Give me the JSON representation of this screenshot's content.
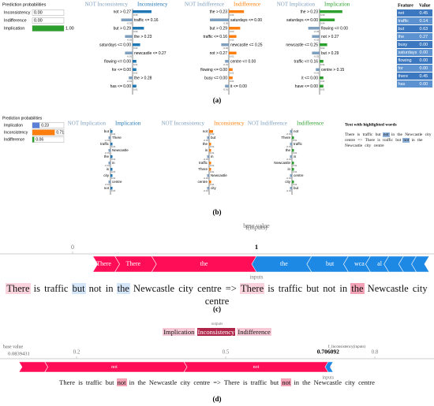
{
  "panel_a": {
    "caption": "(a)",
    "probabilities": {
      "title": "Prediction probabilities",
      "classes": [
        {
          "name": "Inconsistency",
          "value": 0,
          "label": "0.00",
          "color": "#1f77b4"
        },
        {
          "name": "Indifference",
          "value": 0,
          "label": "0.00",
          "color": "#ff7f0e"
        },
        {
          "name": "Implication",
          "value": 1,
          "label": "1.00",
          "color": "#2ca02c"
        }
      ]
    },
    "explanations": [
      {
        "not_label": "NOT Inconsistency",
        "label": "Inconsistency",
        "color": "#1f77b4",
        "not_color": "#7f9fbf",
        "features": [
          "not > 0.27",
          "traffic <= 0.16",
          "but > 0.29",
          "the > 0.23",
          "saturdays <= 0.00",
          "newcastle <= 0.27",
          "flowing <= 0.00",
          "for <= 0.00",
          "the > 0.28",
          "has <= 0.00"
        ],
        "weights": [
          0.05,
          -0.03,
          0.03,
          -0.02,
          0.02,
          -0.02,
          0.01,
          0.01,
          -0.01,
          0.01
        ]
      },
      {
        "not_label": "NOT Indifference",
        "label": "Indifference",
        "color": "#ff7f0e",
        "not_color": "#7f9fbf",
        "features": [
          "the > 0.23",
          "saturdays <= 0.00",
          "but > 0.29",
          "traffic <= 0.16",
          "newcastle <= 0.25",
          "not > 0.27",
          "centre <= 0.00",
          "flowing <= 0.00",
          "busy <= 0.00",
          "it <= 0.00"
        ],
        "weights": [
          0.04,
          -0.05,
          0.03,
          0.02,
          -0.02,
          0.02,
          -0.01,
          0.01,
          0.01,
          -0.01
        ]
      },
      {
        "not_label": "NOT Implication",
        "label": "Implication",
        "color": "#2ca02c",
        "not_color": "#7f9fbf",
        "features": [
          "the > 0.23",
          "saturdays <= 0.00",
          "flowing <= 0.00",
          "not > 0.27",
          "newcastle <= 0.25",
          "but > 0.29",
          "traffic <= 0.16",
          "centre > 0.15",
          "it <= 0.00",
          "have <= 0.00"
        ],
        "weights": [
          0.06,
          0.04,
          -0.03,
          -0.02,
          0.02,
          -0.02,
          0.01,
          -0.01,
          0.01,
          0.01
        ]
      }
    ],
    "feature_table": {
      "headers": [
        "Feature",
        "Value"
      ],
      "rows": [
        [
          "not",
          "0.45"
        ],
        [
          "traffic",
          "0.14"
        ],
        [
          "but",
          "0.63"
        ],
        [
          "the",
          "0.27"
        ],
        [
          "busy",
          "0.00"
        ],
        [
          "saturdays",
          "0.00"
        ],
        [
          "flowing",
          "0.00"
        ],
        [
          "for",
          "0.00"
        ],
        [
          "there",
          "0.45"
        ],
        [
          "has",
          "0.00"
        ]
      ]
    }
  },
  "panel_b": {
    "caption": "(b)",
    "probabilities": {
      "title": "Prediction probabilities",
      "classes": [
        {
          "name": "Implication",
          "value": 0.23,
          "label": "0.23",
          "color": "#5b7fd6"
        },
        {
          "name": "Inconsistency",
          "value": 0.71,
          "label": "0.71",
          "color": "#ff7f0e"
        },
        {
          "name": "Indifference",
          "value": 0.06,
          "label": "0.06",
          "color": "#2ca02c"
        }
      ]
    },
    "explanations": [
      {
        "not_label": "NOT Implication",
        "label": "Implication",
        "color": "#1f77b4",
        "not_color": "#7f9fbf",
        "features": [
          "but",
          "There",
          "traffic",
          "Newcastle",
          "the",
          "in",
          "is",
          "city",
          "centre",
          "not"
        ],
        "weights": [
          0.01,
          -0.01,
          0.01,
          -0.01,
          0.01,
          -0.01,
          0.01,
          0.01,
          -0.01,
          0.01
        ]
      },
      {
        "not_label": "NOT Inconsistency",
        "label": "Inconsistency",
        "color": "#ff7f0e",
        "not_color": "#7f9fbf",
        "features": [
          "not",
          "but",
          "the",
          "is",
          "in",
          "traffic",
          "There",
          "Newcastle",
          "centre",
          "city"
        ],
        "weights": [
          0.02,
          -0.01,
          0.01,
          0.01,
          -0.01,
          0.01,
          0.01,
          -0.01,
          0.01,
          -0.01
        ]
      },
      {
        "not_label": "NOT Indifference",
        "label": "Indifference",
        "color": "#2ca02c",
        "not_color": "#7f9fbf",
        "features": [
          "not",
          "There",
          "traffic",
          "the",
          "is",
          "Newcastle",
          "in",
          "centre",
          "city",
          "but"
        ],
        "weights": [
          -0.01,
          0.01,
          -0.01,
          0.01,
          -0.01,
          0.01,
          0.01,
          -0.01,
          0.01,
          -0.01
        ]
      }
    ],
    "highlighted_text": {
      "title": "Text with highlighted words",
      "tokens": [
        {
          "text": "There",
          "color": null
        },
        {
          "text": "is",
          "color": null
        },
        {
          "text": "traffic",
          "color": null
        },
        {
          "text": "but",
          "color": null
        },
        {
          "text": "not",
          "color": "#8fb3dc"
        },
        {
          "text": "in",
          "color": null
        },
        {
          "text": "the",
          "color": null
        },
        {
          "text": "Newcastle",
          "color": null
        },
        {
          "text": "city",
          "color": null
        },
        {
          "text": "centre",
          "color": null
        },
        {
          "text": "=>",
          "color": null
        },
        {
          "text": "There",
          "color": null
        },
        {
          "text": "is",
          "color": null
        },
        {
          "text": "traffic",
          "color": null
        },
        {
          "text": "but",
          "color": null
        },
        {
          "text": "not",
          "color": "#8fb3dc"
        },
        {
          "text": "in",
          "color": null
        },
        {
          "text": "the",
          "color": null
        },
        {
          "text": "Newcastle",
          "color": null
        },
        {
          "text": "city",
          "color": null
        },
        {
          "text": "centre",
          "color": null
        }
      ]
    }
  },
  "panel_c": {
    "caption": "(c)",
    "base_label": "base value",
    "f_label": "f(inputs)",
    "axis_label": "inputs",
    "xlim": [
      -0.395,
      1.966
    ],
    "xticks": [
      0
    ],
    "output": 1,
    "positive": {
      "color": "#ff0d57",
      "labels": [
        "There",
        "There",
        "the"
      ],
      "values": [
        0.12,
        0.2,
        0.57
      ]
    },
    "negative": {
      "color": "#1e88e5",
      "labels": [
        "the",
        "but",
        "wca",
        "al",
        null,
        null,
        null
      ],
      "values": [
        0.3,
        0.2,
        0.12,
        0.1,
        0.08,
        0.07,
        0.07
      ]
    },
    "tokens": [
      {
        "text": "There",
        "color": "#fbd3dd"
      },
      {
        "text": "is",
        "color": null
      },
      {
        "text": "traffic",
        "color": null
      },
      {
        "text": "but",
        "color": "#d5e6f8"
      },
      {
        "text": "not",
        "color": null
      },
      {
        "text": "in",
        "color": null
      },
      {
        "text": "the",
        "color": "#d5e6f8"
      },
      {
        "text": "Newcastle",
        "color": null
      },
      {
        "text": "city",
        "color": null
      },
      {
        "text": "centre",
        "color": null
      },
      {
        "text": "=>",
        "color": null
      },
      {
        "text": "There",
        "color": "#fbd3dd"
      },
      {
        "text": "is",
        "color": null
      },
      {
        "text": "traffic",
        "color": null
      },
      {
        "text": "but",
        "color": null
      },
      {
        "text": "not",
        "color": null
      },
      {
        "text": "in",
        "color": null
      },
      {
        "text": "the",
        "color": "#f4a3b6"
      },
      {
        "text": "Newcastle",
        "color": null
      },
      {
        "text": "city",
        "color": null
      },
      {
        "text": "centre",
        "color": null
      }
    ]
  },
  "panel_d": {
    "caption": "(d)",
    "outputs_label": "outputs",
    "classes": [
      {
        "text": "Implication",
        "color": "#f7c9d6"
      },
      {
        "text": "Inconsistency",
        "color": "#b0264a"
      },
      {
        "text": "Indifference",
        "color": "#f7c9d6"
      }
    ],
    "base_label": "base value",
    "base_value": 0.0839431,
    "f_label": "f_Inconsistency(inputs)",
    "axis_label": "inputs",
    "xlim": [
      0.046,
      0.919
    ],
    "xticks": [
      0.2,
      0.5,
      0.8
    ],
    "output": 0.706092,
    "positive": {
      "color": "#ff0d57",
      "labels": [
        null,
        "not",
        "not"
      ],
      "values": [
        0.052,
        0.28,
        0.29
      ]
    },
    "negative": {
      "color": "#1e88e5",
      "labels": [
        null
      ],
      "values": [
        0.01
      ]
    },
    "tokens": [
      {
        "text": "There",
        "color": null
      },
      {
        "text": "is",
        "color": null
      },
      {
        "text": "traffic",
        "color": null
      },
      {
        "text": "but",
        "color": null
      },
      {
        "text": "not",
        "color": "#f4a3b6"
      },
      {
        "text": "in",
        "color": null
      },
      {
        "text": "the",
        "color": null
      },
      {
        "text": "Newcastle",
        "color": null
      },
      {
        "text": "city",
        "color": null
      },
      {
        "text": "centre",
        "color": null
      },
      {
        "text": "=>",
        "color": null
      },
      {
        "text": "There",
        "color": null
      },
      {
        "text": "is",
        "color": null
      },
      {
        "text": "traffic",
        "color": null
      },
      {
        "text": "but",
        "color": null
      },
      {
        "text": "not",
        "color": "#f4a3b6"
      },
      {
        "text": "in",
        "color": null
      },
      {
        "text": "the",
        "color": null
      },
      {
        "text": "Newcastle",
        "color": null
      },
      {
        "text": "city",
        "color": null
      },
      {
        "text": "centre",
        "color": null
      }
    ]
  }
}
